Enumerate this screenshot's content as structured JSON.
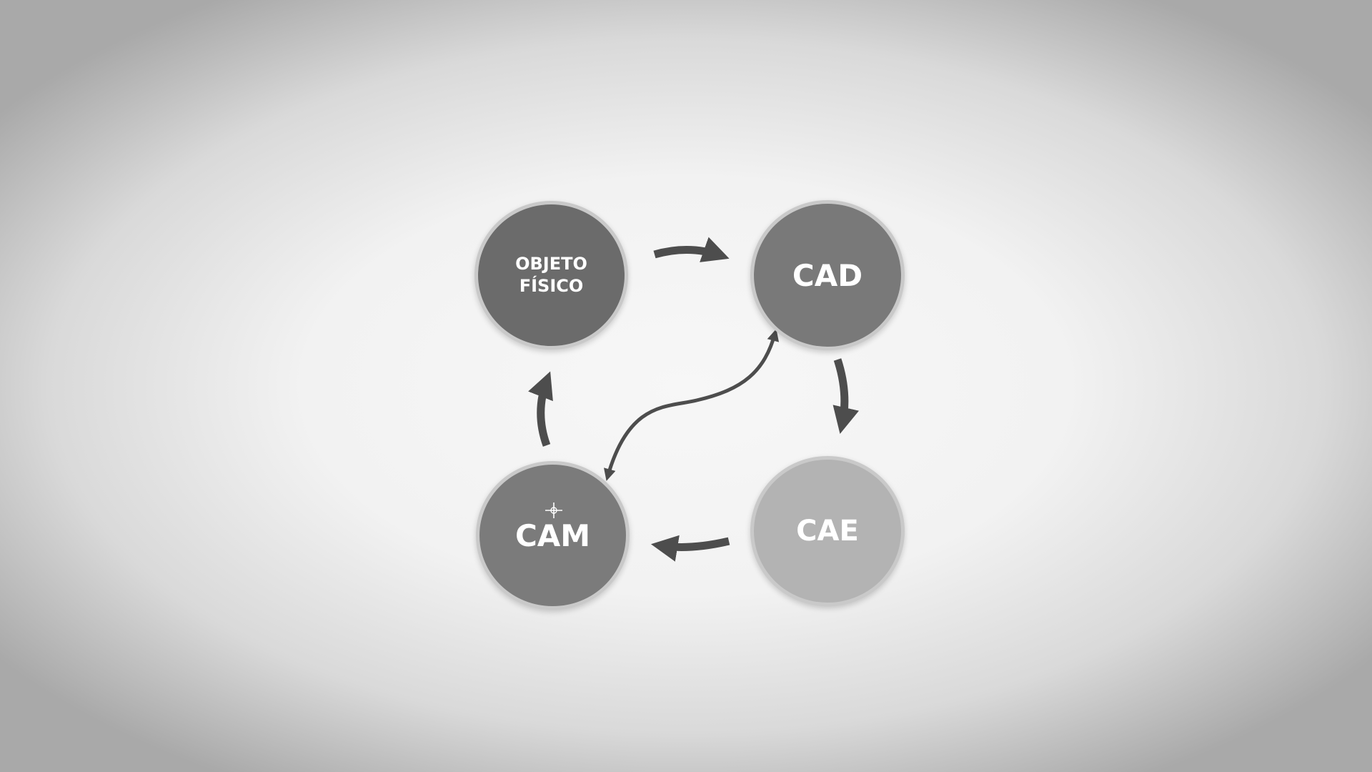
{
  "nodes": {
    "objeto_fisico": {
      "line1": "OBJETO",
      "line2": "FÍSICO"
    },
    "cad": {
      "label": "CAD"
    },
    "cae": {
      "label": "CAE"
    },
    "cam": {
      "label": "CAM"
    }
  },
  "colors": {
    "objeto_fisico": "#6b6b6b",
    "cad": "#797979",
    "cam": "#7b7b7b",
    "cae": "#b3b3b3",
    "arrow": "#4d4d4d",
    "node_border": "#c9c9c9"
  },
  "flow": [
    {
      "from": "OBJETO FÍSICO",
      "to": "CAD"
    },
    {
      "from": "CAD",
      "to": "CAE"
    },
    {
      "from": "CAE",
      "to": "CAM"
    },
    {
      "from": "CAM",
      "to": "OBJETO FÍSICO"
    },
    {
      "from": "CAM",
      "to": "CAD",
      "bidirectional": true
    }
  ]
}
